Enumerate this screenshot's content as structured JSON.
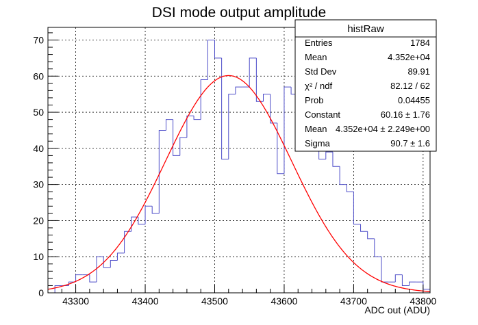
{
  "chart_data": {
    "type": "histogram",
    "title": "DSI mode output amplitude",
    "xlabel": "ADC out (ADU)",
    "ylabel": "",
    "xlim": [
      43260,
      43810
    ],
    "ylim": [
      0,
      73.5
    ],
    "grid": true,
    "x_ticks": [
      "43300",
      "43400",
      "43500",
      "43600",
      "43700",
      "43800"
    ],
    "y_ticks": [
      "0",
      "10",
      "20",
      "30",
      "40",
      "50",
      "60",
      "70"
    ],
    "bin_width": 10,
    "bins_x": [
      43270,
      43280,
      43290,
      43300,
      43310,
      43320,
      43330,
      43340,
      43350,
      43360,
      43370,
      43380,
      43390,
      43400,
      43410,
      43420,
      43430,
      43440,
      43450,
      43460,
      43470,
      43480,
      43490,
      43500,
      43510,
      43520,
      43530,
      43540,
      43550,
      43560,
      43570,
      43580,
      43590,
      43600,
      43610,
      43620,
      43630,
      43640,
      43650,
      43660,
      43670,
      43680,
      43690,
      43700,
      43710,
      43720,
      43730,
      43740,
      43750,
      43760,
      43770,
      43780,
      43790,
      43800
    ],
    "values": [
      2,
      2,
      3,
      5,
      5,
      3,
      10,
      7,
      9,
      11,
      17,
      21,
      19,
      24,
      22,
      45,
      48,
      38,
      43,
      49,
      48,
      59,
      70,
      65,
      37,
      55,
      57,
      57,
      65,
      53,
      55,
      47,
      33,
      57,
      55,
      56,
      53,
      45,
      37,
      39,
      35,
      30,
      28,
      19,
      17,
      15,
      10,
      3,
      3,
      5,
      2,
      3,
      3,
      1
    ],
    "fit": {
      "name": "gaus",
      "color": "#ff0000",
      "constant": 60.16,
      "mean": 43520,
      "sigma": 90.7
    },
    "hist_color": "#4b4bc8",
    "stats": {
      "title": "histRaw",
      "rows": [
        {
          "label": "Entries",
          "value": "1784"
        },
        {
          "label": "Mean",
          "value": "4.352e+04"
        },
        {
          "label": "Std Dev",
          "value": "89.91"
        },
        {
          "label": "χ² / ndf",
          "value": "82.12 / 62"
        },
        {
          "label": "Prob",
          "value": "0.04455"
        },
        {
          "label": "Constant",
          "value": "60.16 ± 1.76"
        },
        {
          "label": "Mean",
          "value": "4.352e+04 ± 2.249e+00"
        },
        {
          "label": "Sigma",
          "value": "90.7 ± 1.6"
        }
      ]
    }
  }
}
